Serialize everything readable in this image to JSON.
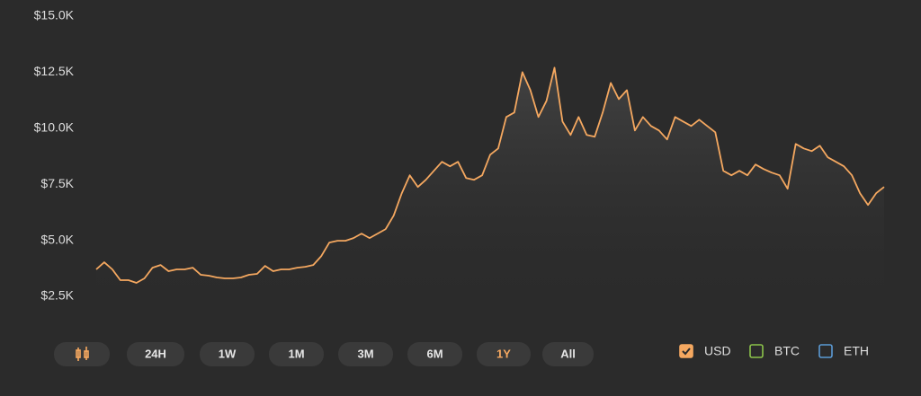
{
  "chart_data": {
    "type": "line",
    "ylim": [
      2500,
      15000
    ],
    "yticks": [
      {
        "value": 2500,
        "label": "$2.5K"
      },
      {
        "value": 5000,
        "label": "$5.0K"
      },
      {
        "value": 7500,
        "label": "$7.5K"
      },
      {
        "value": 10000,
        "label": "$10.0K"
      },
      {
        "value": 12500,
        "label": "$12.5K"
      },
      {
        "value": 15000,
        "label": "$15.0K"
      }
    ],
    "series": [
      {
        "name": "USD",
        "color": "#f5a860",
        "visible": true,
        "values": [
          3700,
          4020,
          3700,
          3220,
          3220,
          3100,
          3300,
          3780,
          3900,
          3620,
          3700,
          3700,
          3780,
          3460,
          3420,
          3340,
          3300,
          3300,
          3340,
          3460,
          3500,
          3860,
          3620,
          3700,
          3700,
          3780,
          3820,
          3900,
          4300,
          4900,
          4980,
          4980,
          5100,
          5300,
          5100,
          5300,
          5500,
          6100,
          7100,
          7900,
          7380,
          7700,
          8100,
          8500,
          8300,
          8500,
          7780,
          7700,
          7900,
          8820,
          9100,
          10500,
          10700,
          12500,
          11700,
          10500,
          11220,
          12700,
          10300,
          9700,
          10500,
          9700,
          9620,
          10700,
          12020,
          11300,
          11700,
          9900,
          10500,
          10100,
          9900,
          9500,
          10500,
          10300,
          10100,
          10380,
          10100,
          9820,
          8100,
          7900,
          8100,
          7900,
          8380,
          8180,
          8020,
          7900,
          7300,
          9300,
          9100,
          8980,
          9220,
          8700,
          8500,
          8300,
          7900,
          7100,
          6580,
          7100,
          7380
        ]
      },
      {
        "name": "BTC",
        "color": "#8bc34a",
        "visible": false,
        "values": []
      },
      {
        "name": "ETH",
        "color": "#5b9bd5",
        "visible": false,
        "values": []
      }
    ],
    "ranges": [
      "24H",
      "1W",
      "1M",
      "3M",
      "6M",
      "1Y",
      "All"
    ],
    "active_range": 5
  }
}
